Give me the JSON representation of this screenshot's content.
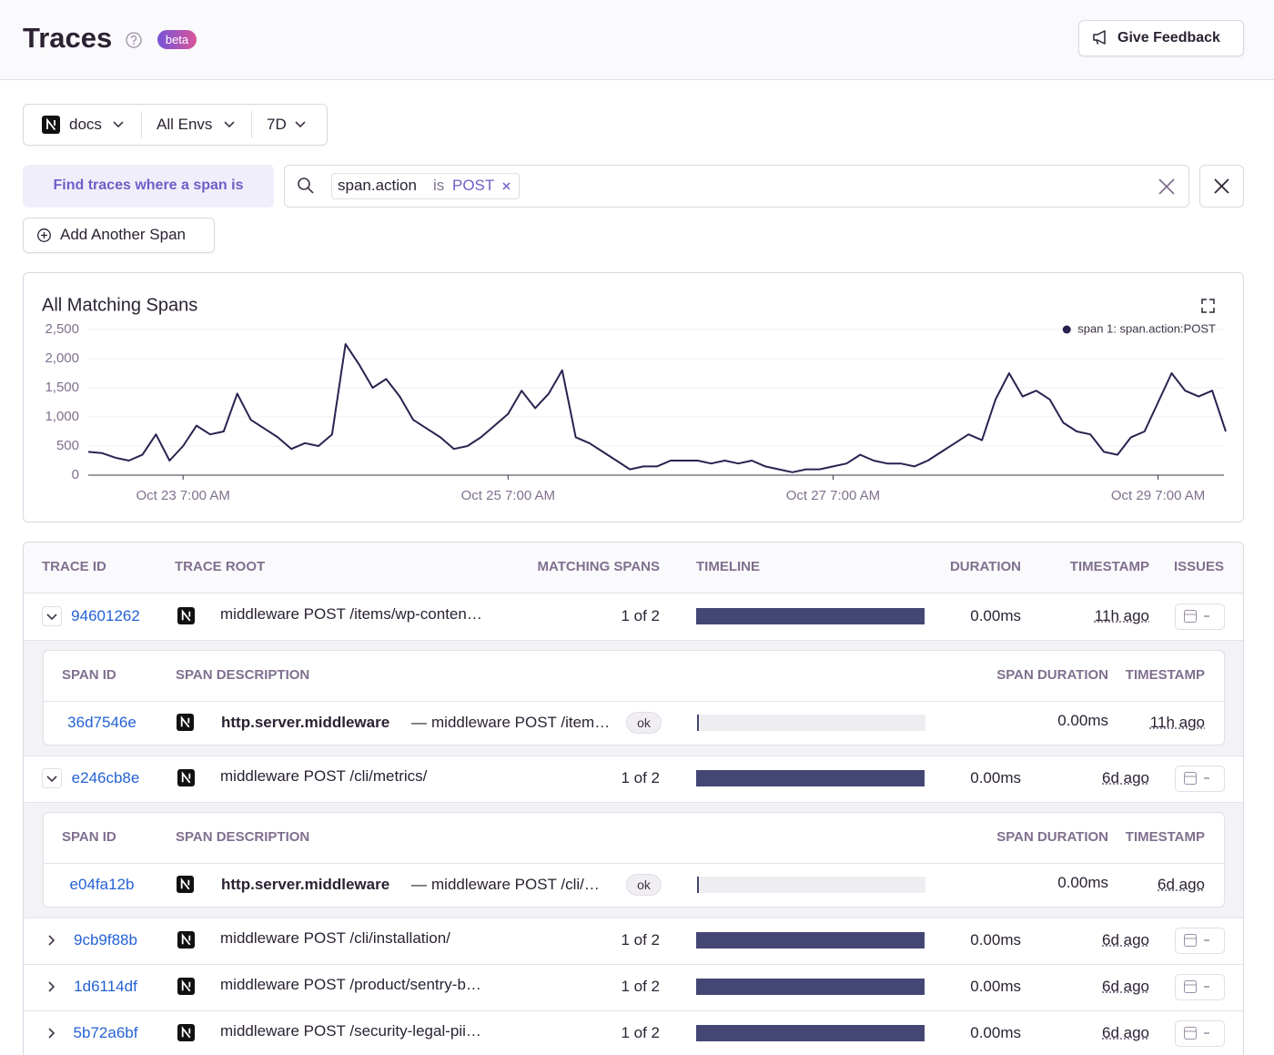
{
  "header": {
    "title": "Traces",
    "badge": "beta",
    "feedback_button": "Give Feedback"
  },
  "filters": {
    "project": "docs",
    "environment": "All Envs",
    "period": "7D"
  },
  "search": {
    "label": "Find traces where a span is",
    "key": "span.action",
    "operator": "is",
    "value": "POST"
  },
  "add_span_button": "Add Another Span",
  "chart_data": {
    "type": "line",
    "title": "All Matching Spans",
    "x": [
      "Oct 22 5:00 PM",
      "Oct 22 7:00 PM",
      "Oct 22 9:00 PM",
      "Oct 22 11:00 PM",
      "Oct 23 1:00 AM",
      "Oct 23 3:00 AM",
      "Oct 23 5:00 AM",
      "Oct 23 7:00 AM",
      "Oct 23 9:00 AM",
      "Oct 23 11:00 AM",
      "Oct 23 1:00 PM",
      "Oct 23 3:00 PM",
      "Oct 23 5:00 PM",
      "Oct 23 7:00 PM",
      "Oct 23 9:00 PM",
      "Oct 23 11:00 PM",
      "Oct 24 1:00 AM",
      "Oct 24 3:00 AM",
      "Oct 24 5:00 AM",
      "Oct 24 7:00 AM",
      "Oct 24 9:00 AM",
      "Oct 24 11:00 AM",
      "Oct 24 1:00 PM",
      "Oct 24 3:00 PM",
      "Oct 24 5:00 PM",
      "Oct 24 7:00 PM",
      "Oct 24 9:00 PM",
      "Oct 24 11:00 PM",
      "Oct 25 1:00 AM",
      "Oct 25 3:00 AM",
      "Oct 25 5:00 AM",
      "Oct 25 7:00 AM",
      "Oct 25 9:00 AM",
      "Oct 25 11:00 AM",
      "Oct 25 1:00 PM",
      "Oct 25 3:00 PM",
      "Oct 25 5:00 PM",
      "Oct 25 7:00 PM",
      "Oct 25 9:00 PM",
      "Oct 25 11:00 PM",
      "Oct 26 1:00 AM",
      "Oct 26 3:00 AM",
      "Oct 26 5:00 AM",
      "Oct 26 7:00 AM",
      "Oct 26 9:00 AM",
      "Oct 26 11:00 AM",
      "Oct 26 1:00 PM",
      "Oct 26 3:00 PM",
      "Oct 26 5:00 PM",
      "Oct 26 7:00 PM",
      "Oct 26 9:00 PM",
      "Oct 26 11:00 PM",
      "Oct 27 1:00 AM",
      "Oct 27 3:00 AM",
      "Oct 27 5:00 AM",
      "Oct 27 7:00 AM",
      "Oct 27 9:00 AM",
      "Oct 27 11:00 AM",
      "Oct 27 1:00 PM",
      "Oct 27 3:00 PM",
      "Oct 27 5:00 PM",
      "Oct 27 7:00 PM",
      "Oct 27 9:00 PM",
      "Oct 27 11:00 PM",
      "Oct 28 1:00 AM",
      "Oct 28 3:00 AM",
      "Oct 28 5:00 AM",
      "Oct 28 7:00 AM",
      "Oct 28 9:00 AM",
      "Oct 28 11:00 AM",
      "Oct 28 1:00 PM",
      "Oct 28 3:00 PM",
      "Oct 28 5:00 PM",
      "Oct 28 7:00 PM",
      "Oct 28 9:00 PM",
      "Oct 28 11:00 PM",
      "Oct 29 1:00 AM",
      "Oct 29 3:00 AM",
      "Oct 29 5:00 AM",
      "Oct 29 7:00 AM",
      "Oct 29 9:00 AM",
      "Oct 29 11:00 AM",
      "Oct 29 1:00 PM",
      "Oct 29 3:00 PM",
      "Oct 29 5:00 PM"
    ],
    "series": [
      {
        "name": "span 1: span.action:POST",
        "color": "#2b2250",
        "values": [
          400,
          380,
          300,
          250,
          350,
          700,
          250,
          500,
          850,
          700,
          750,
          1400,
          950,
          800,
          650,
          450,
          550,
          500,
          700,
          2250,
          1900,
          1500,
          1650,
          1350,
          950,
          800,
          650,
          450,
          500,
          650,
          850,
          1050,
          1450,
          1150,
          1400,
          1800,
          650,
          550,
          400,
          250,
          100,
          150,
          150,
          250,
          250,
          250,
          200,
          250,
          200,
          250,
          150,
          100,
          50,
          100,
          100,
          150,
          200,
          350,
          250,
          200,
          200,
          150,
          250,
          400,
          550,
          700,
          600,
          1300,
          1750,
          1350,
          1450,
          1300,
          900,
          750,
          700,
          400,
          350,
          650,
          750,
          1250,
          1750,
          1450,
          1350,
          1450,
          750
        ]
      }
    ],
    "ylim": [
      0,
      2500
    ],
    "yticks": [
      0,
      500,
      {
        "value": 1000,
        "label": "1,000"
      },
      {
        "value": 1500,
        "label": "1,500"
      },
      {
        "value": 2000,
        "label": "2,000"
      },
      {
        "value": 2500,
        "label": "2,500"
      }
    ],
    "xticks": [
      "Oct 23 7:00 AM",
      "Oct 25 7:00 AM",
      "Oct 27 7:00 AM",
      "Oct 29 7:00 AM"
    ],
    "grid": true,
    "legend": "top-right"
  },
  "table": {
    "columns": [
      "TRACE ID",
      "TRACE ROOT",
      "MATCHING SPANS",
      "TIMELINE",
      "DURATION",
      "TIMESTAMP",
      "ISSUES"
    ],
    "span_columns": [
      "SPAN ID",
      "SPAN DESCRIPTION",
      "SPAN DURATION",
      "TIMESTAMP"
    ],
    "rows": [
      {
        "trace_id": "94601262",
        "root": "middleware POST /items/wp-conten…",
        "matching": "1 of 2",
        "duration": "0.00ms",
        "timestamp": "11h ago",
        "expanded": true,
        "spans": [
          {
            "span_id": "36d7546e",
            "op": "http.server.middleware",
            "separator": "—",
            "description": "middleware POST /item…",
            "status": "ok",
            "duration": "0.00ms",
            "timestamp": "11h ago"
          }
        ]
      },
      {
        "trace_id": "e246cb8e",
        "root": "middleware POST /cli/metrics/",
        "matching": "1 of 2",
        "duration": "0.00ms",
        "timestamp": "6d ago",
        "expanded": true,
        "spans": [
          {
            "span_id": "e04fa12b",
            "op": "http.server.middleware",
            "separator": "—",
            "description": "middleware POST /cli/…",
            "status": "ok",
            "duration": "0.00ms",
            "timestamp": "6d ago"
          }
        ]
      },
      {
        "trace_id": "9cb9f88b",
        "root": "middleware POST /cli/installation/",
        "matching": "1 of 2",
        "duration": "0.00ms",
        "timestamp": "6d ago",
        "expanded": false
      },
      {
        "trace_id": "1d6114df",
        "root": "middleware POST /product/sentry-b…",
        "matching": "1 of 2",
        "duration": "0.00ms",
        "timestamp": "6d ago",
        "expanded": false
      },
      {
        "trace_id": "5b72a6bf",
        "root": "middleware POST /security-legal-pii…",
        "matching": "1 of 2",
        "duration": "0.00ms",
        "timestamp": "6d ago",
        "expanded": false
      }
    ]
  }
}
